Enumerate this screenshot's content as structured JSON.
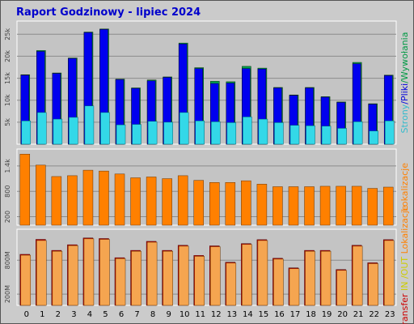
{
  "colors": {
    "frame": "#cbcbcb",
    "panel": "#c4c4c4",
    "grid": "#8c8c8c",
    "title": "#0000cc",
    "bar_blue": "#0000ee",
    "bar_cyan": "#33d8e8",
    "bar_green": "#00a050",
    "bar_orange": "#ff8000",
    "bar_light_orange": "#f5a550",
    "bar_red": "#cc0000",
    "side_cyan": "#33bbcc",
    "side_blue": "#0000dd",
    "side_green": "#009944",
    "side_orange": "#ff8000",
    "side_yellow": "#cccc00",
    "side_red": "#cc0000"
  },
  "chart_data": [
    {
      "type": "bar",
      "title": "Raport Godzinowy -  lipiec 2024",
      "side_label": {
        "parts": [
          {
            "text": "Strony",
            "color": "#33bbcc"
          },
          {
            "text": "/",
            "color": "#0000dd"
          },
          {
            "text": "Pliki",
            "color": "#0000dd"
          },
          {
            "text": "/",
            "color": "#009944"
          },
          {
            "text": "Wywołania",
            "color": "#009944"
          }
        ]
      },
      "categories": [
        "0",
        "1",
        "2",
        "3",
        "4",
        "5",
        "6",
        "7",
        "8",
        "9",
        "10",
        "11",
        "12",
        "13",
        "14",
        "15",
        "16",
        "17",
        "18",
        "19",
        "20",
        "21",
        "22",
        "23"
      ],
      "yticks": [
        "5k",
        "10k",
        "15k",
        "20k",
        "25k"
      ],
      "ylim": [
        0,
        28000
      ],
      "series": [
        {
          "name": "Wywołania",
          "color": "#00a050",
          "values": [
            15800,
            21300,
            16200,
            19600,
            25500,
            26200,
            14800,
            12800,
            14600,
            15300,
            23000,
            17400,
            14300,
            14200,
            17700,
            17300,
            12900,
            11200,
            12900,
            10800,
            9600,
            18600,
            9200,
            15700
          ]
        },
        {
          "name": "Pliki",
          "color": "#0000ee",
          "values": [
            15700,
            21100,
            16100,
            19500,
            25400,
            26100,
            14700,
            12700,
            14400,
            15200,
            22800,
            17200,
            13800,
            13900,
            17200,
            17100,
            12800,
            11100,
            12800,
            10700,
            9500,
            18300,
            9100,
            15600
          ]
        },
        {
          "name": "Strony",
          "color": "#33d8e8",
          "values": [
            5300,
            7200,
            5700,
            6100,
            8700,
            7200,
            4400,
            4500,
            5200,
            5000,
            7200,
            5300,
            5100,
            4900,
            6200,
            5700,
            4900,
            4300,
            4200,
            4100,
            3600,
            5100,
            3000,
            5300
          ]
        }
      ]
    },
    {
      "type": "bar",
      "side_label": {
        "parts": [
          {
            "text": "Lokalizacje",
            "color": "#ff8000"
          }
        ]
      },
      "categories": [
        "0",
        "1",
        "2",
        "3",
        "4",
        "5",
        "6",
        "7",
        "8",
        "9",
        "10",
        "11",
        "12",
        "13",
        "14",
        "15",
        "16",
        "17",
        "18",
        "19",
        "20",
        "21",
        "22",
        "23"
      ],
      "yticks": [
        "200",
        "800",
        "1.4k"
      ],
      "ylim": [
        0,
        1800
      ],
      "series": [
        {
          "name": "Lokalizacje",
          "color": "#ff8000",
          "values": [
            1680,
            1420,
            1150,
            1170,
            1300,
            1280,
            1210,
            1120,
            1140,
            1100,
            1170,
            1060,
            1010,
            1010,
            1050,
            970,
            910,
            910,
            910,
            920,
            920,
            920,
            870,
            900
          ]
        }
      ]
    },
    {
      "type": "bar",
      "side_label": {
        "parts": [
          {
            "text": "Transfer",
            "color": "#cc0000"
          },
          {
            "text": " IN ",
            "color": "#cccc00"
          },
          {
            "text": "/",
            "color": "#cccc00"
          },
          {
            "text": "OUT",
            "color": "#cccc00"
          },
          {
            "text": " ",
            "color": "#cccc00"
          },
          {
            "text": "Lokalizacje",
            "color": "#ff8000"
          }
        ]
      },
      "categories": [
        "0",
        "1",
        "2",
        "3",
        "4",
        "5",
        "6",
        "7",
        "8",
        "9",
        "10",
        "11",
        "12",
        "13",
        "14",
        "15",
        "16",
        "17",
        "18",
        "19",
        "20",
        "21",
        "22",
        "23"
      ],
      "yticks": [
        "200M",
        "800M"
      ],
      "ylim": [
        0,
        1350
      ],
      "series": [
        {
          "name": "Transfer",
          "color": "#cc0000",
          "values": [
            905,
            1170,
            975,
            1075,
            1195,
            1185,
            845,
            975,
            1135,
            975,
            1065,
            885,
            1055,
            765,
            1095,
            1165,
            835,
            665,
            975,
            975,
            635,
            1065,
            755,
            1165
          ]
        },
        {
          "name": "Lokalizacje",
          "color": "#f5a550",
          "values": [
            890,
            1150,
            960,
            1060,
            1180,
            1170,
            830,
            960,
            1120,
            960,
            1050,
            870,
            1040,
            750,
            1080,
            1150,
            820,
            650,
            960,
            960,
            620,
            1050,
            740,
            1150
          ]
        }
      ]
    }
  ]
}
